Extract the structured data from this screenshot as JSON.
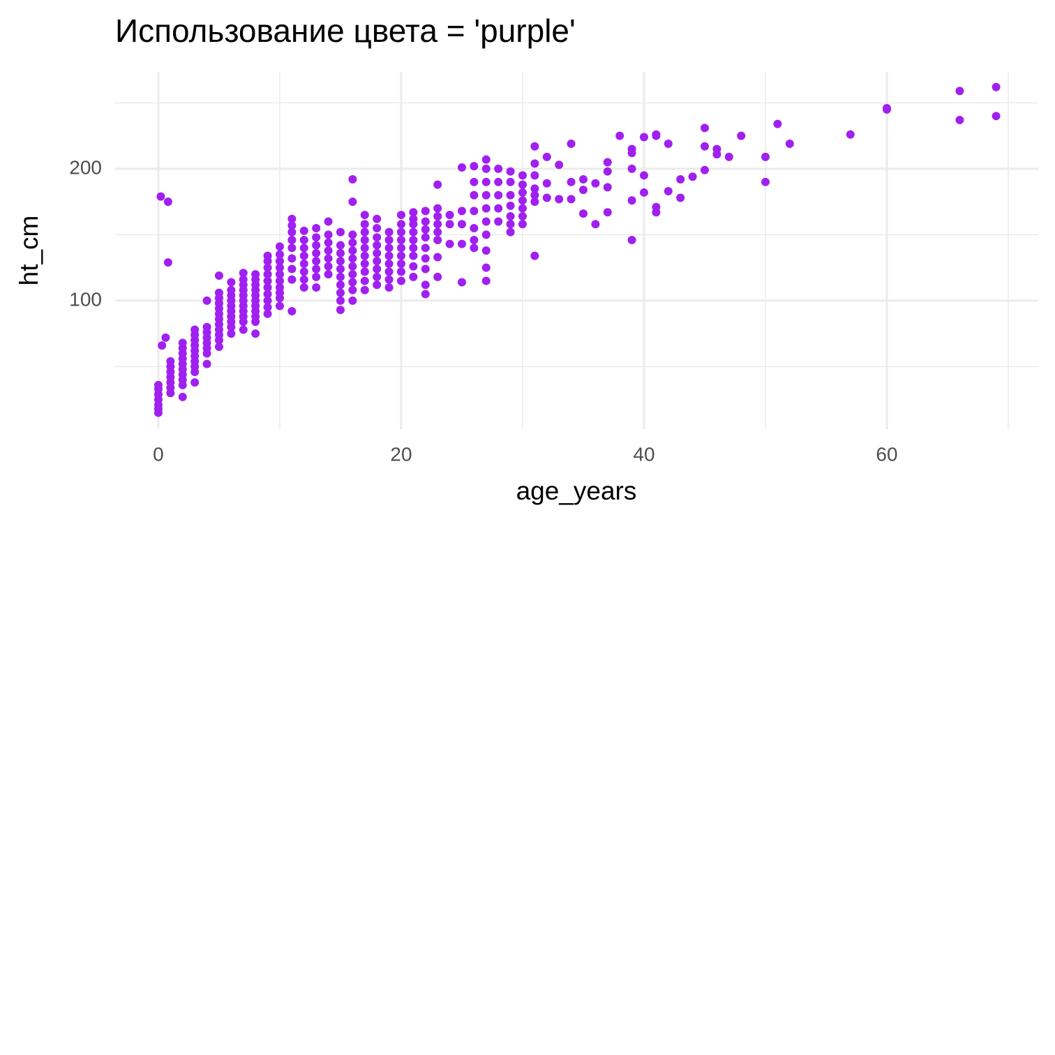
{
  "chart_data": {
    "type": "scatter",
    "title": "Использование цвета = 'purple'",
    "x_label": "age_years",
    "y_label": "ht_cm",
    "color": "#a020f0",
    "xlim": [
      -3.56,
      72.47
    ],
    "xticks": [
      0,
      20,
      40,
      60
    ],
    "xminorticks": [
      10,
      30,
      50,
      70
    ],
    "ylim": [
      2.6,
      273.5
    ],
    "yticks": [
      100,
      200
    ],
    "yminorticks": [
      50,
      150,
      250
    ],
    "grid": true,
    "x": [
      0,
      0,
      0,
      0,
      0,
      0,
      0,
      0.2,
      0.3,
      0.6,
      0.8,
      0.8,
      1,
      1,
      1,
      1,
      1,
      1,
      1,
      2,
      2,
      2,
      2,
      2,
      2,
      2,
      2,
      2,
      2,
      3,
      3,
      3,
      3,
      3,
      3,
      3,
      3,
      3,
      3,
      4,
      4,
      4,
      4,
      4,
      4,
      4,
      4,
      5,
      5,
      5,
      5,
      5,
      5,
      5,
      5,
      5,
      5,
      5,
      5,
      6,
      6,
      6,
      6,
      6,
      6,
      6,
      6,
      6,
      6,
      7,
      7,
      7,
      7,
      7,
      7,
      7,
      7,
      7,
      7,
      7,
      8,
      8,
      8,
      8,
      8,
      8,
      8,
      8,
      8,
      8,
      8,
      9,
      9,
      9,
      9,
      9,
      9,
      9,
      9,
      9,
      9,
      10,
      10,
      10,
      10,
      10,
      10,
      10,
      10,
      10,
      10,
      11,
      11,
      11,
      11,
      11,
      11,
      11,
      11,
      11,
      12,
      12,
      12,
      12,
      12,
      12,
      12,
      12,
      13,
      13,
      13,
      13,
      13,
      13,
      13,
      13,
      14,
      14,
      14,
      14,
      14,
      14,
      14,
      15,
      15,
      15,
      15,
      15,
      15,
      15,
      15,
      15,
      15,
      16,
      16,
      16,
      16,
      16,
      16,
      16,
      16,
      16,
      16,
      16,
      17,
      17,
      17,
      17,
      17,
      17,
      17,
      17,
      17,
      17,
      18,
      18,
      18,
      18,
      18,
      18,
      18,
      18,
      18,
      19,
      19,
      19,
      19,
      19,
      19,
      19,
      19,
      20,
      20,
      20,
      20,
      20,
      20,
      20,
      20,
      20,
      21,
      21,
      21,
      21,
      21,
      21,
      21,
      21,
      21,
      22,
      22,
      22,
      22,
      22,
      22,
      22,
      22,
      22,
      23,
      23,
      23,
      23,
      23,
      23,
      23,
      23,
      24,
      24,
      24,
      25,
      25,
      25,
      25,
      25,
      26,
      26,
      26,
      26,
      26,
      26,
      26,
      27,
      27,
      27,
      27,
      27,
      27,
      27,
      27,
      27,
      27,
      28,
      28,
      28,
      28,
      28,
      29,
      29,
      29,
      29,
      29,
      29,
      29,
      30,
      30,
      30,
      30,
      30,
      30,
      30,
      31,
      31,
      31,
      31,
      31,
      31,
      31,
      32,
      32,
      32,
      33,
      33,
      34,
      34,
      34,
      35,
      35,
      35,
      36,
      36,
      37,
      37,
      37,
      37,
      38,
      39,
      39,
      39,
      39,
      39,
      40,
      40,
      40,
      41,
      41,
      41,
      41,
      42,
      42,
      43,
      43,
      44,
      45,
      45,
      45,
      46,
      46,
      47,
      48,
      50,
      50,
      51,
      52,
      57,
      60,
      60,
      66,
      66,
      69,
      69
    ],
    "values": [
      15,
      18,
      21,
      25,
      29,
      33,
      36,
      179,
      66,
      72,
      175,
      129,
      30,
      34,
      38,
      42,
      46,
      50,
      54,
      27,
      36,
      40,
      44,
      48,
      52,
      56,
      60,
      64,
      68,
      38,
      46,
      50,
      54,
      58,
      62,
      66,
      70,
      74,
      78,
      52,
      60,
      64,
      68,
      72,
      76,
      80,
      100,
      65,
      70,
      74,
      78,
      82,
      86,
      90,
      94,
      98,
      102,
      106,
      119,
      75,
      80,
      84,
      88,
      92,
      96,
      100,
      104,
      108,
      114,
      78,
      84,
      88,
      92,
      96,
      100,
      104,
      108,
      112,
      116,
      121,
      75,
      84,
      88,
      92,
      96,
      100,
      104,
      108,
      112,
      116,
      120,
      90,
      95,
      100,
      105,
      110,
      115,
      120,
      125,
      130,
      134,
      96,
      102,
      106,
      110,
      115,
      120,
      125,
      130,
      135,
      141,
      92,
      116,
      124,
      132,
      140,
      146,
      152,
      157,
      162,
      110,
      116,
      122,
      128,
      134,
      140,
      146,
      153,
      110,
      118,
      124,
      130,
      136,
      142,
      148,
      155,
      120,
      126,
      132,
      138,
      144,
      150,
      160,
      93,
      100,
      106,
      112,
      118,
      124,
      130,
      136,
      142,
      152,
      100,
      108,
      114,
      120,
      126,
      132,
      138,
      144,
      150,
      175,
      192,
      108,
      115,
      122,
      128,
      134,
      140,
      146,
      152,
      158,
      165,
      112,
      118,
      124,
      130,
      136,
      142,
      148,
      155,
      162,
      110,
      116,
      122,
      128,
      134,
      140,
      146,
      152,
      115,
      122,
      128,
      134,
      140,
      146,
      152,
      158,
      165,
      118,
      126,
      134,
      140,
      146,
      152,
      158,
      162,
      167,
      105,
      112,
      124,
      132,
      140,
      148,
      154,
      160,
      168,
      118,
      133,
      146,
      152,
      158,
      164,
      170,
      188,
      143,
      158,
      165,
      114,
      143,
      158,
      168,
      201,
      140,
      146,
      155,
      168,
      180,
      190,
      202,
      115,
      125,
      138,
      150,
      160,
      170,
      180,
      190,
      200,
      207,
      160,
      170,
      180,
      190,
      200,
      152,
      158,
      164,
      172,
      180,
      190,
      198,
      158,
      164,
      170,
      176,
      182,
      188,
      195,
      134,
      175,
      180,
      185,
      195,
      204,
      217,
      178,
      189,
      209,
      177,
      203,
      177,
      190,
      219,
      166,
      184,
      192,
      158,
      189,
      167,
      186,
      198,
      205,
      225,
      146,
      176,
      200,
      212,
      215,
      182,
      195,
      224,
      167,
      171,
      225,
      226,
      183,
      219,
      178,
      192,
      194,
      199,
      217,
      231,
      211,
      215,
      209,
      225,
      190,
      209,
      234,
      219,
      226,
      245,
      246,
      237,
      259,
      240,
      262
    ]
  }
}
